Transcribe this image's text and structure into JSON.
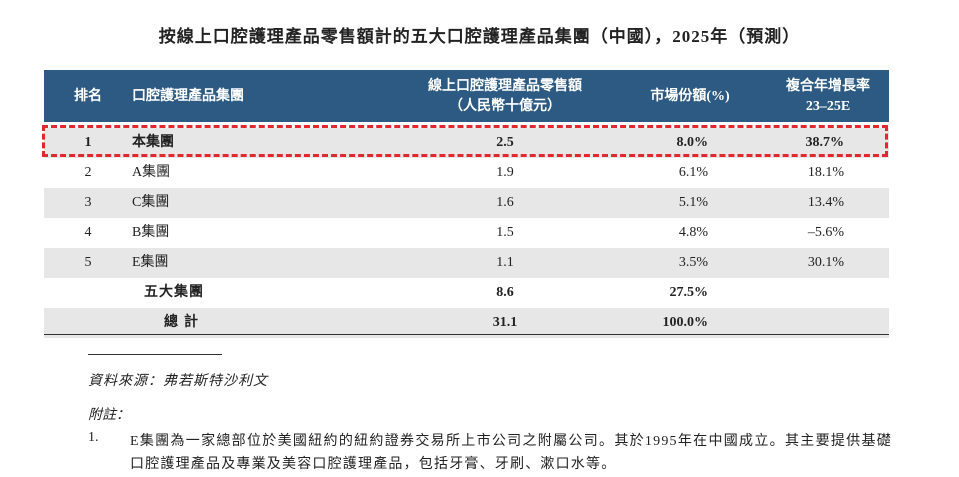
{
  "header": {
    "title": "按線上口腔護理產品零售額計的五大口腔護理產品集團（中國），2025年（預測）"
  },
  "table": {
    "columns": [
      "排名",
      "口腔護理產品集團",
      "線上口腔護理產品零售額",
      "（人民幣十億元）",
      "市場份額(%)",
      "複合年增長率",
      "23–25E"
    ],
    "rows": [
      [
        "1",
        "本集團",
        "2.5",
        "8.0%",
        "38.7%"
      ],
      [
        "2",
        "A集團",
        "1.9",
        "6.1%",
        "18.1%"
      ],
      [
        "3",
        "C集團",
        "1.6",
        "5.1%",
        "13.4%"
      ],
      [
        "4",
        "B集團",
        "1.5",
        "4.8%",
        "–5.6%"
      ],
      [
        "5",
        "E集團",
        "1.1",
        "3.5%",
        "30.1%"
      ]
    ],
    "totals": [
      [
        "五大集團",
        "8.6",
        "27.5%"
      ],
      [
        "總計",
        "31.1",
        "100.0%"
      ]
    ]
  },
  "source": "資料來源：弗若斯特沙利文",
  "notes": {
    "heading": "附註：",
    "items": [
      {
        "number": "1.",
        "text": "E集團為一家總部位於美國紐約的紐約證券交易所上市公司之附屬公司。其於1995年在中國成立。其主要提供基礎口腔護理產品及專業及美容口腔護理產品，包括牙膏、牙刷、漱口水等。"
      }
    ]
  }
}
